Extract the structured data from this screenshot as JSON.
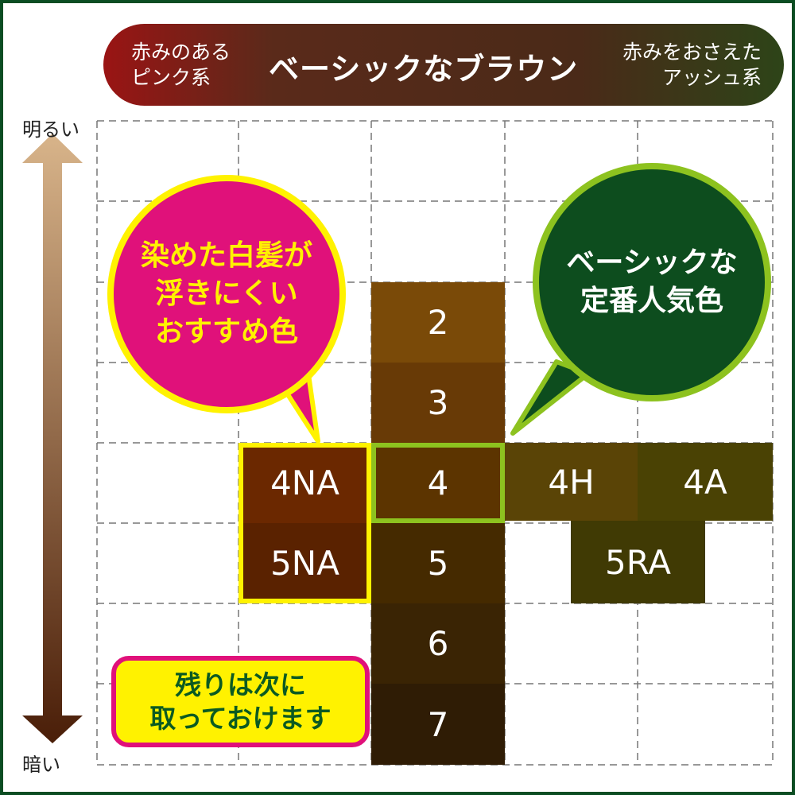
{
  "banner": {
    "left": "赤みのある\nピンク系",
    "center": "ベーシックなブラウン",
    "right": "赤みをおさえた\nアッシュ系",
    "gradient": [
      "#9a1414",
      "#4a2a18",
      "#2d4418"
    ]
  },
  "axis": {
    "top": "明るい",
    "bottom": "暗い"
  },
  "swatches": [
    {
      "label": "2",
      "color": "#7a4a08"
    },
    {
      "label": "3",
      "color": "#683a06"
    },
    {
      "label": "4",
      "color": "#5c3400"
    },
    {
      "label": "5",
      "color": "#452a00"
    },
    {
      "label": "6",
      "color": "#3a2404"
    },
    {
      "label": "7",
      "color": "#2f1c05"
    },
    {
      "label": "4NA",
      "color": "#6b2800"
    },
    {
      "label": "5NA",
      "color": "#5a2200"
    },
    {
      "label": "4H",
      "color": "#5a4406"
    },
    {
      "label": "4A",
      "color": "#4a4204"
    },
    {
      "label": "5RA",
      "color": "#403a04"
    }
  ],
  "bubbles": {
    "pink": {
      "text": "染めた白髪が\n浮きにくい\nおすすめ色",
      "fill": "#e0117a",
      "border": "#fff200",
      "text_color": "#fff200"
    },
    "green": {
      "text": "ベーシックな\n定番人気色",
      "fill": "#0d4d1e",
      "border": "#8dc21f",
      "text_color": "#ffffff"
    }
  },
  "note": {
    "text": "残りは次に\n取っておけます"
  }
}
